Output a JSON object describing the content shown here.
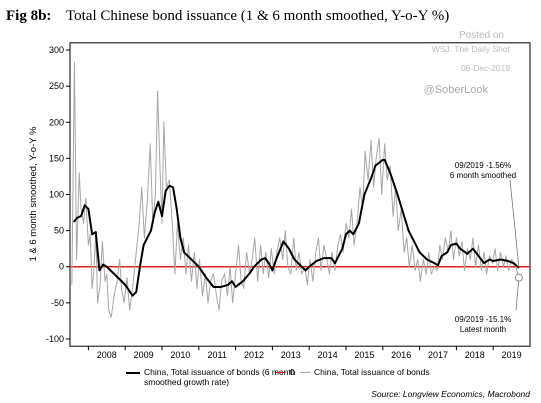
{
  "chart_data": {
    "type": "line",
    "title_prefix": "Fig 8b:",
    "title": "Total Chinese bond issuance (1 & 6 month smoothed, Y-o-Y %)",
    "watermark": [
      "Posted on",
      "WSJ: The Daily Shot",
      "06-Dec-2019",
      "@SoberLook"
    ],
    "ylabel": "1 & 6 month smoothed, Y-o-Y %",
    "xlim": [
      2007.5,
      2020
    ],
    "ylim": [
      -110,
      310
    ],
    "yticks": [
      -100,
      -50,
      0,
      50,
      100,
      150,
      200,
      250,
      300
    ],
    "xticks": [
      {
        "value": 2008.5,
        "label": "2008"
      },
      {
        "value": 2009.5,
        "label": "2009"
      },
      {
        "value": 2010.5,
        "label": "2010"
      },
      {
        "value": 2011.5,
        "label": "2011"
      },
      {
        "value": 2012.5,
        "label": "2012"
      },
      {
        "value": 2013.5,
        "label": "2013"
      },
      {
        "value": 2014.5,
        "label": "2014"
      },
      {
        "value": 2015.5,
        "label": "2015"
      },
      {
        "value": 2016.5,
        "label": "2016"
      },
      {
        "value": 2017.5,
        "label": "2017"
      },
      {
        "value": 2018.5,
        "label": "2018"
      },
      {
        "value": 2019.5,
        "label": "2019"
      }
    ],
    "reference_line": {
      "name": "0",
      "value": 0,
      "color": "#e2231a"
    },
    "series": [
      {
        "name": "China, Total issuance of bonds",
        "color": "#a6a6a6",
        "x": [
          2007.55,
          2007.62,
          2007.68,
          2007.75,
          2007.8,
          2007.87,
          2007.93,
          2008.0,
          2008.05,
          2008.1,
          2008.15,
          2008.2,
          2008.25,
          2008.32,
          2008.38,
          2008.45,
          2008.5,
          2008.55,
          2008.62,
          2008.7,
          2008.78,
          2008.85,
          2008.9,
          2008.97,
          2009.05,
          2009.12,
          2009.2,
          2009.3,
          2009.38,
          2009.45,
          2009.52,
          2009.6,
          2009.68,
          2009.75,
          2009.82,
          2009.88,
          2009.95,
          2010.0,
          2010.05,
          2010.12,
          2010.2,
          2010.28,
          2010.35,
          2010.42,
          2010.5,
          2010.58,
          2010.65,
          2010.72,
          2010.8,
          2010.88,
          2010.95,
          2011.02,
          2011.1,
          2011.18,
          2011.25,
          2011.32,
          2011.4,
          2011.48,
          2011.55,
          2011.62,
          2011.7,
          2011.78,
          2011.85,
          2011.92,
          2012.0,
          2012.08,
          2012.15,
          2012.22,
          2012.3,
          2012.38,
          2012.45,
          2012.52,
          2012.6,
          2012.68,
          2012.75,
          2012.82,
          2012.9,
          2012.97,
          2013.05,
          2013.12,
          2013.2,
          2013.28,
          2013.35,
          2013.42,
          2013.5,
          2013.58,
          2013.65,
          2013.72,
          2013.8,
          2013.88,
          2013.95,
          2014.02,
          2014.1,
          2014.18,
          2014.25,
          2014.32,
          2014.4,
          2014.48,
          2014.55,
          2014.62,
          2014.7,
          2014.78,
          2014.85,
          2014.92,
          2015.0,
          2015.08,
          2015.15,
          2015.22,
          2015.3,
          2015.38,
          2015.45,
          2015.52,
          2015.6,
          2015.68,
          2015.75,
          2015.82,
          2015.9,
          2015.97,
          2016.05,
          2016.12,
          2016.2,
          2016.28,
          2016.35,
          2016.42,
          2016.5,
          2016.58,
          2016.65,
          2016.72,
          2016.8,
          2016.88,
          2016.95,
          2017.02,
          2017.1,
          2017.18,
          2017.25,
          2017.32,
          2017.4,
          2017.48,
          2017.55,
          2017.62,
          2017.7,
          2017.78,
          2017.85,
          2017.92,
          2018.0,
          2018.08,
          2018.15,
          2018.22,
          2018.3,
          2018.38,
          2018.45,
          2018.52,
          2018.6,
          2018.68,
          2018.75,
          2018.82,
          2018.9,
          2018.98,
          2019.05,
          2019.12,
          2019.2,
          2019.28,
          2019.35,
          2019.42,
          2019.5,
          2019.58,
          2019.7
        ],
        "values": [
          -25,
          283,
          10,
          130,
          80,
          60,
          95,
          30,
          45,
          -30,
          -5,
          48,
          -50,
          -25,
          35,
          -20,
          -10,
          -60,
          -70,
          -40,
          -20,
          10,
          -30,
          -50,
          -15,
          -60,
          -30,
          20,
          60,
          110,
          40,
          90,
          170,
          60,
          100,
          243,
          130,
          60,
          200,
          110,
          120,
          60,
          -10,
          60,
          10,
          40,
          -10,
          30,
          -20,
          20,
          -30,
          10,
          -40,
          -10,
          -50,
          -20,
          -10,
          -40,
          -60,
          -20,
          -10,
          -40,
          0,
          -50,
          -10,
          30,
          -20,
          -30,
          20,
          -10,
          10,
          40,
          -20,
          30,
          -10,
          20,
          -15,
          25,
          -10,
          20,
          40,
          10,
          50,
          0,
          -10,
          40,
          -5,
          20,
          -10,
          0,
          -25,
          10,
          -20,
          20,
          40,
          -5,
          30,
          10,
          -10,
          20,
          -5,
          30,
          45,
          20,
          60,
          40,
          80,
          30,
          60,
          110,
          80,
          160,
          120,
          175,
          110,
          150,
          178,
          100,
          170,
          120,
          140,
          70,
          110,
          50,
          80,
          20,
          40,
          0,
          30,
          -5,
          10,
          -20,
          10,
          -10,
          20,
          -10,
          0,
          -5,
          30,
          10,
          40,
          20,
          50,
          10,
          40,
          15,
          35,
          -5,
          25,
          10,
          40,
          0,
          30,
          -5,
          20,
          -10,
          15,
          5,
          25,
          -5,
          20,
          0,
          15,
          -5,
          10,
          5,
          -15.1
        ]
      },
      {
        "name": "China, Total issuance of bonds (6 month smoothed growth rate)",
        "color": "#000000",
        "x": [
          2007.6,
          2007.7,
          2007.8,
          2007.9,
          2008.0,
          2008.1,
          2008.2,
          2008.3,
          2008.4,
          2008.5,
          2008.7,
          2008.9,
          2009.0,
          2009.2,
          2009.3,
          2009.4,
          2009.5,
          2009.7,
          2009.8,
          2009.9,
          2010.0,
          2010.1,
          2010.2,
          2010.3,
          2010.4,
          2010.5,
          2010.6,
          2010.8,
          2011.0,
          2011.2,
          2011.4,
          2011.6,
          2011.8,
          2011.9,
          2012.0,
          2012.2,
          2012.4,
          2012.5,
          2012.7,
          2012.8,
          2012.9,
          2013.0,
          2013.1,
          2013.3,
          2013.45,
          2013.6,
          2013.8,
          2013.9,
          2014.0,
          2014.2,
          2014.4,
          2014.6,
          2014.7,
          2014.8,
          2014.9,
          2015.0,
          2015.1,
          2015.2,
          2015.35,
          2015.5,
          2015.7,
          2015.8,
          2016.0,
          2016.05,
          2016.2,
          2016.4,
          2016.55,
          2016.7,
          2016.85,
          2017.0,
          2017.2,
          2017.4,
          2017.5,
          2017.6,
          2017.75,
          2017.85,
          2018.0,
          2018.1,
          2018.3,
          2018.45,
          2018.6,
          2018.75,
          2018.9,
          2019.0,
          2019.2,
          2019.4,
          2019.55,
          2019.7
        ],
        "values": [
          62,
          68,
          70,
          85,
          80,
          45,
          48,
          -5,
          3,
          0,
          -10,
          -20,
          -25,
          -40,
          -35,
          0,
          30,
          50,
          75,
          90,
          70,
          105,
          112,
          110,
          80,
          40,
          20,
          10,
          0,
          -15,
          -28,
          -28,
          -25,
          -20,
          -28,
          -20,
          -8,
          0,
          10,
          12,
          5,
          -5,
          10,
          35,
          25,
          10,
          0,
          -5,
          0,
          8,
          12,
          12,
          5,
          15,
          25,
          45,
          50,
          45,
          60,
          100,
          125,
          140,
          148,
          148,
          130,
          100,
          75,
          50,
          35,
          20,
          10,
          5,
          2,
          15,
          20,
          30,
          32,
          25,
          18,
          25,
          15,
          5,
          10,
          8,
          10,
          8,
          5,
          -1.56
        ]
      }
    ],
    "annotations": [
      {
        "lines": [
          "09/2019 -1.56%",
          "6 month smoothed"
        ],
        "series": 1
      },
      {
        "lines": [
          "09/2019 -15.1%",
          "Latest month"
        ],
        "series": 0
      }
    ],
    "source": "Source: Longview Economics, Macrobond"
  }
}
